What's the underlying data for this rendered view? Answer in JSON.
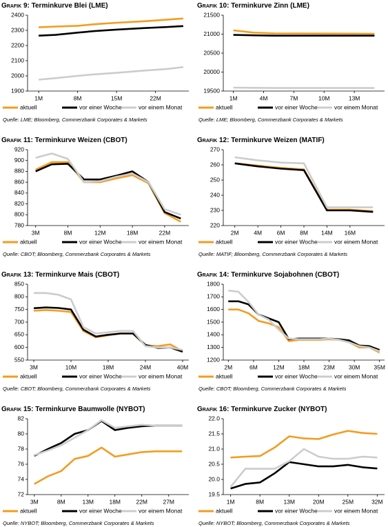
{
  "chart_data": [
    {
      "type": "line",
      "label": "Grafik 9:",
      "title": "Terminkurve Blei (LME)",
      "legend": "bottom",
      "x": [
        1,
        4,
        8,
        11,
        15,
        20,
        24,
        27
      ],
      "xlim": [
        -1,
        28
      ],
      "xticks": [
        {
          "value": 1,
          "label": "1M"
        },
        {
          "value": 8,
          "label": "8M"
        },
        {
          "value": 15,
          "label": "15M"
        },
        {
          "value": 22,
          "label": "22M"
        }
      ],
      "ylim": [
        1900,
        2400
      ],
      "yticks": [
        1900,
        2000,
        2100,
        2200,
        2300,
        2400
      ],
      "series": [
        {
          "name": "aktuell",
          "color": "#f39c1f",
          "values": [
            2320,
            2325,
            2330,
            2340,
            2350,
            2360,
            2370,
            2378
          ]
        },
        {
          "name": "vor einer Woche",
          "color": "#000000",
          "values": [
            2265,
            2270,
            2285,
            2295,
            2305,
            2315,
            2322,
            2328
          ]
        },
        {
          "name": "vor einem Monat",
          "color": "#cccccc",
          "values": [
            1975,
            1985,
            2000,
            2010,
            2020,
            2035,
            2045,
            2058
          ]
        }
      ],
      "source": "Quelle: LME; Bloomberg, Commerzbank Corporates & Markets"
    },
    {
      "type": "line",
      "label": "Grafik 10:",
      "title": "Terminkurve Zinn (LME)",
      "legend": "bottom",
      "x": [
        1,
        3,
        5,
        15
      ],
      "xlim": [
        0,
        16
      ],
      "xticks": [
        {
          "value": 1,
          "label": "1M"
        },
        {
          "value": 4,
          "label": "4M"
        },
        {
          "value": 7,
          "label": "7M"
        },
        {
          "value": 10,
          "label": "10M"
        },
        {
          "value": 13,
          "label": "13M"
        }
      ],
      "ylim": [
        19500,
        21500
      ],
      "yticks": [
        19500,
        20000,
        20500,
        21000,
        21500
      ],
      "series": [
        {
          "name": "aktuell",
          "color": "#f39c1f",
          "values": [
            21100,
            21040,
            21020,
            21010
          ]
        },
        {
          "name": "vor einer Woche",
          "color": "#000000",
          "values": [
            20980,
            20970,
            20960,
            20960
          ]
        },
        {
          "name": "vor einem Monat",
          "color": "#cccccc",
          "values": [
            19590,
            19585,
            19580,
            19580
          ]
        }
      ],
      "source": "Quelle: LME; Bloomberg, Commerzbank Corporates & Markets"
    },
    {
      "type": "line",
      "label": "Grafik 11:",
      "title": "Terminkurve Weizen (CBOT)",
      "legend": "bottom",
      "x": [
        1,
        2,
        3,
        4,
        5,
        6,
        7,
        8,
        9,
        10
      ],
      "xlim": [
        0.5,
        10.5
      ],
      "xticks": [
        {
          "value": 1,
          "label": "3M"
        },
        {
          "value": 3,
          "label": "8M"
        },
        {
          "value": 5,
          "label": "12M"
        },
        {
          "value": 7,
          "label": "18M"
        },
        {
          "value": 9,
          "label": "22M"
        }
      ],
      "ylim": [
        780,
        920
      ],
      "yticks": [
        780,
        800,
        820,
        840,
        860,
        880,
        900,
        920
      ],
      "series": [
        {
          "name": "aktuell",
          "color": "#f39c1f",
          "values": [
            883,
            897,
            897,
            860,
            860,
            867,
            873,
            858,
            803,
            787
          ]
        },
        {
          "name": "vor einer Woche",
          "color": "#000000",
          "values": [
            880,
            893,
            894,
            865,
            865,
            872,
            880,
            860,
            805,
            793
          ]
        },
        {
          "name": "vor einem Monat",
          "color": "#cccccc",
          "values": [
            905,
            913,
            903,
            860,
            862,
            870,
            876,
            860,
            810,
            800
          ]
        }
      ],
      "source": "Quelle: CBOT; Bloomberg, Commerzbank Corporates & Markets"
    },
    {
      "type": "line",
      "label": "Grafik 12:",
      "title": "Terminkurve Weizen (MATIF)",
      "legend": "bottom",
      "x": [
        1,
        2,
        3,
        4,
        5,
        6,
        7
      ],
      "xlim": [
        0.5,
        7.5
      ],
      "xticks": [
        {
          "value": 1,
          "label": "2M"
        },
        {
          "value": 2,
          "label": "4M"
        },
        {
          "value": 3,
          "label": "6M"
        },
        {
          "value": 4,
          "label": "8M"
        },
        {
          "value": 5,
          "label": "14M"
        },
        {
          "value": 6,
          "label": "16M"
        }
      ],
      "ylim": [
        220,
        270
      ],
      "yticks": [
        220,
        230,
        240,
        250,
        260,
        270
      ],
      "series": [
        {
          "name": "aktuell",
          "color": "#f39c1f",
          "values": [
            261,
            259.5,
            258,
            257,
            230.5,
            230.5,
            229.5
          ]
        },
        {
          "name": "vor einer Woche",
          "color": "#000000",
          "values": [
            261,
            259,
            257.5,
            256.5,
            230,
            230,
            229
          ]
        },
        {
          "name": "vor einem Monat",
          "color": "#cccccc",
          "values": [
            265,
            263,
            261.5,
            261,
            232,
            232,
            232
          ]
        }
      ],
      "source": "Quelle: MATIF; Bloomberg, Commerzbank Corporates & Markets"
    },
    {
      "type": "line",
      "label": "Grafik 13:",
      "title": "Terminkurve Mais (CBOT)",
      "legend": "bottom",
      "x": [
        1,
        2,
        3,
        4,
        5,
        6,
        7,
        8,
        9,
        10,
        11,
        12,
        13
      ],
      "xlim": [
        0.5,
        13.5
      ],
      "xticks": [
        {
          "value": 1,
          "label": "3M"
        },
        {
          "value": 4,
          "label": "10M"
        },
        {
          "value": 7,
          "label": "18M"
        },
        {
          "value": 10,
          "label": "24M"
        },
        {
          "value": 13,
          "label": "40M"
        }
      ],
      "ylim": [
        550,
        850
      ],
      "yticks": [
        550,
        600,
        650,
        700,
        750,
        800,
        850
      ],
      "series": [
        {
          "name": "aktuell",
          "color": "#f39c1f",
          "values": [
            745,
            748,
            745,
            740,
            665,
            640,
            648,
            655,
            655,
            608,
            605,
            612,
            585
          ]
        },
        {
          "name": "vor einer Woche",
          "color": "#000000",
          "values": [
            755,
            758,
            756,
            750,
            670,
            643,
            650,
            655,
            655,
            610,
            598,
            600,
            583
          ]
        },
        {
          "name": "vor einem Monat",
          "color": "#cccccc",
          "values": [
            815,
            815,
            808,
            790,
            680,
            655,
            660,
            665,
            665,
            605,
            600,
            600,
            590
          ]
        }
      ],
      "source": "Quelle: CBOT; Bloomberg, Commerzbank Corporates & Markets"
    },
    {
      "type": "line",
      "label": "Grafik 14:",
      "title": "Terminkurve Sojabohnen (CBOT)",
      "legend": "bottom",
      "x": [
        1,
        2,
        3,
        4,
        5,
        6,
        7,
        8,
        9,
        10,
        11,
        12,
        13,
        14,
        15,
        16
      ],
      "xlim": [
        0.5,
        16.5
      ],
      "xticks": [
        {
          "value": 1,
          "label": "2M"
        },
        {
          "value": 3.5,
          "label": "6M"
        },
        {
          "value": 6,
          "label": "12M"
        },
        {
          "value": 8.5,
          "label": "18M"
        },
        {
          "value": 11,
          "label": "23M"
        },
        {
          "value": 13.5,
          "label": "30M"
        },
        {
          "value": 16,
          "label": "35M"
        }
      ],
      "ylim": [
        1200,
        1800
      ],
      "yticks": [
        1200,
        1300,
        1400,
        1500,
        1600,
        1700,
        1800
      ],
      "series": [
        {
          "name": "aktuell",
          "color": "#f39c1f",
          "values": [
            1600,
            1600,
            1570,
            1510,
            1490,
            1460,
            1350,
            1360,
            1360,
            1360,
            1365,
            1360,
            1340,
            1300,
            1300,
            1260
          ]
        },
        {
          "name": "vor einer Woche",
          "color": "#000000",
          "values": [
            1665,
            1665,
            1640,
            1560,
            1530,
            1500,
            1365,
            1370,
            1370,
            1370,
            1370,
            1365,
            1355,
            1315,
            1310,
            1280
          ]
        },
        {
          "name": "vor einem Monat",
          "color": "#cccccc",
          "values": [
            1750,
            1740,
            1660,
            1560,
            1520,
            1440,
            1370,
            1365,
            1365,
            1365,
            1370,
            1360,
            1340,
            1310,
            1300,
            1270
          ]
        }
      ],
      "source": "Quelle: CBOT; Bloomberg, Commerzbank Corporates & Markets"
    },
    {
      "type": "line",
      "label": "Grafik 15:",
      "title": "Terminkurve Baumwolle (NYBOT)",
      "legend": "bottom",
      "x": [
        1,
        2,
        3,
        4,
        5,
        6,
        7,
        8,
        9,
        10,
        11,
        12
      ],
      "xlim": [
        0.5,
        12.5
      ],
      "xticks": [
        {
          "value": 1,
          "label": "3M"
        },
        {
          "value": 3,
          "label": "8M"
        },
        {
          "value": 5,
          "label": "13M"
        },
        {
          "value": 7,
          "label": "18M"
        },
        {
          "value": 9,
          "label": "22M"
        },
        {
          "value": 11,
          "label": "27M"
        }
      ],
      "ylim": [
        72,
        82
      ],
      "yticks": [
        72,
        74,
        76,
        78,
        80,
        82
      ],
      "series": [
        {
          "name": "aktuell",
          "color": "#f39c1f",
          "values": [
            73.4,
            74.4,
            75.1,
            76.7,
            77.1,
            78.2,
            77.0,
            77.3,
            77.6,
            77.7,
            77.7,
            77.7
          ]
        },
        {
          "name": "vor einer Woche",
          "color": "#000000",
          "values": [
            77.1,
            78,
            78.8,
            80,
            80.5,
            81.7,
            80.5,
            80.8,
            81.0,
            81.1,
            81.1,
            81.1
          ]
        },
        {
          "name": "vor einem Monat",
          "color": "#cccccc",
          "values": [
            77.2,
            77.8,
            78.5,
            79.5,
            80.5,
            81.8,
            80.8,
            81.0,
            81.2,
            81.1,
            81.1,
            81.1
          ]
        }
      ],
      "source": "Quelle: NYBOT; Bloomberg, Commerzbank Corporates & Markets"
    },
    {
      "type": "line",
      "label": "Grafik 16:",
      "title": "Terminkurve Zucker (NYBOT)",
      "legend": "bottom",
      "x": [
        1,
        2,
        3,
        4,
        5,
        6,
        7,
        8,
        9,
        10,
        11
      ],
      "xlim": [
        0.5,
        11.5
      ],
      "xticks": [
        {
          "value": 1,
          "label": "1M"
        },
        {
          "value": 3,
          "label": "8M"
        },
        {
          "value": 5,
          "label": "13M"
        },
        {
          "value": 7,
          "label": "20M"
        },
        {
          "value": 9,
          "label": "25M"
        },
        {
          "value": 11,
          "label": "32M"
        }
      ],
      "ylim": [
        19.5,
        22
      ],
      "yticks": [
        19.5,
        {
          "value": 20,
          "label": "20.0"
        },
        20.5,
        {
          "value": 21,
          "label": "21.0"
        },
        21.5,
        {
          "value": 22,
          "label": "22.0"
        }
      ],
      "series": [
        {
          "name": "aktuell",
          "color": "#f39c1f",
          "values": [
            20.72,
            20.75,
            20.77,
            21.05,
            21.42,
            21.35,
            21.33,
            21.48,
            21.6,
            21.53,
            21.5
          ]
        },
        {
          "name": "vor einer Woche",
          "color": "#000000",
          "values": [
            19.7,
            19.85,
            19.9,
            20.2,
            20.57,
            20.5,
            20.43,
            20.43,
            20.48,
            20.4,
            20.36
          ]
        },
        {
          "name": "vor einem Monat",
          "color": "#cccccc",
          "values": [
            19.75,
            20.35,
            20.35,
            20.35,
            20.6,
            21.0,
            20.75,
            20.68,
            20.68,
            20.75,
            20.72
          ]
        }
      ],
      "source": "Quelle: NYBOT; Bloomberg, Commerzbank Corporates & Markets"
    }
  ]
}
